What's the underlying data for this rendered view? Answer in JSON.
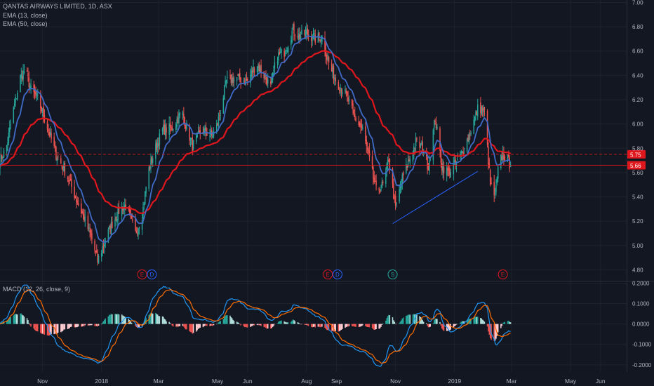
{
  "header": {
    "symbol_title": "QANTAS AIRWAYS LIMITED, 1D, ASX",
    "indicator_1": "EMA (13, close)",
    "indicator_2": "EMA (50, close)"
  },
  "macd_panel": {
    "label": "MACD (12, 26, close, 9)"
  },
  "colors": {
    "background": "#131722",
    "up_candle": "#26a69a",
    "down_candle": "#ef5350",
    "ema13": "#3f6bc7",
    "ema50": "#e0161d",
    "macd_line": "#2196f3",
    "signal_line": "#ff6d00",
    "grid": "#1e222d",
    "price_tag_red": "#e0161d"
  },
  "chart_data": [
    {
      "type": "candlestick",
      "title": "QANTAS AIRWAYS LIMITED, 1D, ASX",
      "y_axis_ticks": [
        "7.00",
        "6.80",
        "6.60",
        "6.40",
        "6.20",
        "6.00",
        "5.80",
        "5.60",
        "5.40",
        "5.20",
        "5.00",
        "4.80"
      ],
      "ylim": [
        4.71,
        7.02
      ],
      "x_axis_ticks": [
        "Nov",
        "2018",
        "Mar",
        "May",
        "Jun",
        "Aug",
        "Sep",
        "Nov",
        "2019",
        "Mar",
        "May",
        "Jun"
      ],
      "x_tick_dates": [
        "2017-11-01",
        "2018-01-01",
        "2018-03-01",
        "2018-05-01",
        "2018-06-01",
        "2018-08-01",
        "2018-09-01",
        "2018-11-01",
        "2019-01-01",
        "2019-03-01",
        "2019-05-01",
        "2019-06-01"
      ],
      "date_range": [
        "2017-09-18",
        "2019-06-28"
      ],
      "last_date": "2019-02-28",
      "close_anchors": [
        {
          "date": "2017-09-18",
          "close": 5.7
        },
        {
          "date": "2017-09-25",
          "close": 5.82
        },
        {
          "date": "2017-10-02",
          "close": 6.12
        },
        {
          "date": "2017-10-09",
          "close": 6.38
        },
        {
          "date": "2017-10-14",
          "close": 6.45
        },
        {
          "date": "2017-10-20",
          "close": 6.28
        },
        {
          "date": "2017-10-27",
          "close": 6.2
        },
        {
          "date": "2017-11-01",
          "close": 6.1
        },
        {
          "date": "2017-11-08",
          "close": 5.92
        },
        {
          "date": "2017-11-15",
          "close": 5.75
        },
        {
          "date": "2017-11-25",
          "close": 5.6
        },
        {
          "date": "2017-12-05",
          "close": 5.4
        },
        {
          "date": "2017-12-15",
          "close": 5.2
        },
        {
          "date": "2017-12-22",
          "close": 5.05
        },
        {
          "date": "2017-12-28",
          "close": 4.87
        },
        {
          "date": "2018-01-05",
          "close": 5.05
        },
        {
          "date": "2018-01-12",
          "close": 5.18
        },
        {
          "date": "2018-01-20",
          "close": 5.3
        },
        {
          "date": "2018-01-26",
          "close": 5.33
        },
        {
          "date": "2018-02-05",
          "close": 5.1
        },
        {
          "date": "2018-02-12",
          "close": 5.25
        },
        {
          "date": "2018-02-18",
          "close": 5.6
        },
        {
          "date": "2018-02-25",
          "close": 5.78
        },
        {
          "date": "2018-03-05",
          "close": 5.95
        },
        {
          "date": "2018-03-15",
          "close": 5.97
        },
        {
          "date": "2018-03-25",
          "close": 6.1
        },
        {
          "date": "2018-04-05",
          "close": 5.82
        },
        {
          "date": "2018-04-15",
          "close": 5.95
        },
        {
          "date": "2018-04-25",
          "close": 5.9
        },
        {
          "date": "2018-05-01",
          "close": 6.0
        },
        {
          "date": "2018-05-10",
          "close": 6.35
        },
        {
          "date": "2018-05-20",
          "close": 6.38
        },
        {
          "date": "2018-06-01",
          "close": 6.35
        },
        {
          "date": "2018-06-10",
          "close": 6.5
        },
        {
          "date": "2018-06-18",
          "close": 6.4
        },
        {
          "date": "2018-06-25",
          "close": 6.3
        },
        {
          "date": "2018-07-01",
          "close": 6.55
        },
        {
          "date": "2018-07-10",
          "close": 6.6
        },
        {
          "date": "2018-07-18",
          "close": 6.78
        },
        {
          "date": "2018-07-25",
          "close": 6.72
        },
        {
          "date": "2018-08-01",
          "close": 6.75
        },
        {
          "date": "2018-08-10",
          "close": 6.7
        },
        {
          "date": "2018-08-18",
          "close": 6.72
        },
        {
          "date": "2018-08-22",
          "close": 6.55
        },
        {
          "date": "2018-08-26",
          "close": 6.45
        },
        {
          "date": "2018-09-01",
          "close": 6.35
        },
        {
          "date": "2018-09-10",
          "close": 6.25
        },
        {
          "date": "2018-09-20",
          "close": 6.05
        },
        {
          "date": "2018-09-28",
          "close": 5.95
        },
        {
          "date": "2018-10-05",
          "close": 5.7
        },
        {
          "date": "2018-10-12",
          "close": 5.45
        },
        {
          "date": "2018-10-20",
          "close": 5.5
        },
        {
          "date": "2018-10-25",
          "close": 5.72
        },
        {
          "date": "2018-11-01",
          "close": 5.3
        },
        {
          "date": "2018-11-08",
          "close": 5.55
        },
        {
          "date": "2018-11-15",
          "close": 5.7
        },
        {
          "date": "2018-11-22",
          "close": 5.85
        },
        {
          "date": "2018-11-29",
          "close": 5.8
        },
        {
          "date": "2018-12-05",
          "close": 5.65
        },
        {
          "date": "2018-12-12",
          "close": 6.05
        },
        {
          "date": "2018-12-19",
          "close": 5.65
        },
        {
          "date": "2018-12-26",
          "close": 5.6
        },
        {
          "date": "2019-01-05",
          "close": 5.7
        },
        {
          "date": "2019-01-12",
          "close": 5.82
        },
        {
          "date": "2019-01-20",
          "close": 6.0
        },
        {
          "date": "2019-01-26",
          "close": 6.15
        },
        {
          "date": "2019-02-01",
          "close": 6.1
        },
        {
          "date": "2019-02-07",
          "close": 5.5
        },
        {
          "date": "2019-02-12",
          "close": 5.4
        },
        {
          "date": "2019-02-16",
          "close": 5.68
        },
        {
          "date": "2019-02-20",
          "close": 5.75
        },
        {
          "date": "2019-02-24",
          "close": 5.72
        },
        {
          "date": "2019-02-28",
          "close": 5.66
        }
      ],
      "series": [
        {
          "name": "EMA (13, close)",
          "color": "#3f6bc7"
        },
        {
          "name": "EMA (50, close)",
          "color": "#e0161d"
        }
      ],
      "trendline": {
        "from": {
          "date": "2018-10-29",
          "price": 5.18
        },
        "to": {
          "date": "2019-01-25",
          "price": 5.61
        },
        "color": "#2962ff"
      },
      "horizontal_lines": [
        {
          "price": 5.75,
          "style": "dashed",
          "label": "5.75"
        },
        {
          "price": 5.66,
          "style": "solid",
          "label": "5.66"
        }
      ],
      "event_markers": [
        {
          "date": "2018-02-12",
          "letter": "E",
          "kind": "earnings"
        },
        {
          "date": "2018-02-22",
          "letter": "D",
          "kind": "dividend"
        },
        {
          "date": "2018-08-23",
          "letter": "E",
          "kind": "earnings"
        },
        {
          "date": "2018-09-02",
          "letter": "D",
          "kind": "dividend"
        },
        {
          "date": "2018-10-29",
          "letter": "S",
          "kind": "split"
        },
        {
          "date": "2019-02-20",
          "letter": "E",
          "kind": "earnings"
        }
      ]
    },
    {
      "type": "histogram+line",
      "title": "MACD (12, 26, close, 9)",
      "y_axis_ticks": [
        "0.2000",
        "0.1000",
        "0.0000",
        "-0.1000",
        "-0.2000"
      ],
      "ylim": [
        -0.235,
        0.205
      ],
      "series": [
        {
          "name": "MACD",
          "color": "#2196f3"
        },
        {
          "name": "Signal",
          "color": "#ff6d00"
        },
        {
          "name": "Histogram",
          "color": "#26a69a"
        }
      ]
    }
  ]
}
